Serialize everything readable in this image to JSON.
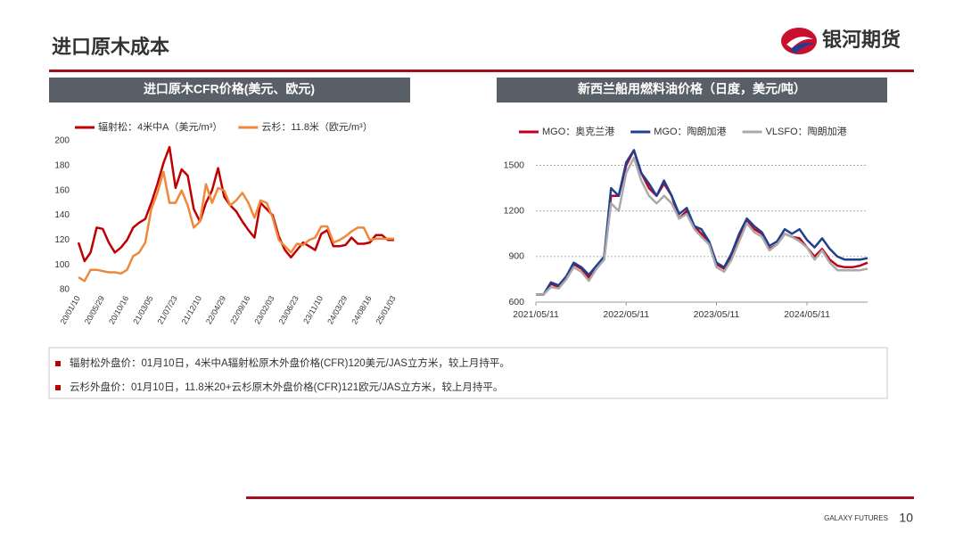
{
  "header": {
    "title": "进口原木成本",
    "logo": "银河期货"
  },
  "chart_data": [
    {
      "type": "line",
      "title": "进口原木CFR价格(美元、欧元)",
      "categories": [
        "20/01/10",
        null,
        null,
        null,
        "20/05/29",
        null,
        null,
        null,
        "20/10/16",
        null,
        null,
        null,
        "21/03/05",
        null,
        null,
        null,
        "21/07/23",
        null,
        null,
        null,
        "21/12/10",
        null,
        null,
        null,
        "22/04/29",
        null,
        null,
        null,
        "22/09/16",
        null,
        null,
        null,
        "23/02/03",
        null,
        null,
        null,
        "23/06/23",
        null,
        null,
        null,
        "23/11/10",
        null,
        null,
        null,
        "24/03/29",
        null,
        null,
        null,
        "24/08/16",
        null,
        null,
        null,
        "25/01/03"
      ],
      "series": [
        {
          "name": "辐射松：4米中A（美元/m³）",
          "color": "#c00000",
          "values": [
            118,
            103,
            110,
            130,
            129,
            118,
            110,
            114,
            120,
            130,
            134,
            137,
            150,
            165,
            182,
            195,
            162,
            177,
            172,
            145,
            135,
            150,
            160,
            178,
            155,
            148,
            143,
            135,
            128,
            122,
            150,
            145,
            140,
            123,
            112,
            106,
            112,
            118,
            115,
            112,
            125,
            128,
            115,
            115,
            116,
            122,
            117,
            117,
            118,
            124,
            124,
            120,
            120
          ]
        },
        {
          "name": "云杉：11.8米（欧元/m³）",
          "color": "#f0883a",
          "values": [
            90,
            87,
            96,
            96,
            95,
            94,
            94,
            93,
            96,
            107,
            110,
            118,
            145,
            158,
            175,
            150,
            150,
            160,
            148,
            130,
            135,
            165,
            150,
            162,
            160,
            148,
            152,
            158,
            150,
            138,
            152,
            150,
            138,
            120,
            115,
            110,
            117,
            116,
            120,
            122,
            131,
            131,
            118,
            120,
            123,
            127,
            130,
            130,
            120,
            121,
            121,
            121,
            121
          ]
        }
      ],
      "ylim": [
        80,
        200
      ],
      "yticks": [
        80,
        100,
        120,
        140,
        160,
        180,
        200
      ],
      "grid": false
    },
    {
      "type": "line",
      "title": "新西兰船用燃料油价格（日度，美元/吨）",
      "x": [
        "2021/05/11",
        "2021/06/11",
        "2021/07/11",
        "2021/08/11",
        "2021/09/11",
        "2021/10/11",
        "2021/11/11",
        "2021/12/11",
        "2022/01/11",
        "2022/02/11",
        "2022/03/11",
        "2022/04/11",
        "2022/05/11",
        "2022/06/11",
        "2022/07/11",
        "2022/08/11",
        "2022/09/11",
        "2022/10/11",
        "2022/11/11",
        "2022/12/11",
        "2023/01/11",
        "2023/02/11",
        "2023/03/11",
        "2023/04/11",
        "2023/05/11",
        "2023/06/11",
        "2023/07/11",
        "2023/08/11",
        "2023/09/11",
        "2023/10/11",
        "2023/11/11",
        "2023/12/11",
        "2024/01/11",
        "2024/02/11",
        "2024/03/11",
        "2024/04/11",
        "2024/05/11",
        "2024/06/11",
        "2024/07/11",
        "2024/08/11",
        "2024/09/11",
        "2024/10/11",
        "2024/11/11",
        "2024/12/11",
        "2025/01/11"
      ],
      "series": [
        {
          "name": "MGO：奥克兰港",
          "color": "#c0001f",
          "values": [
            650,
            650,
            720,
            700,
            760,
            850,
            820,
            760,
            830,
            900,
            1300,
            1300,
            1500,
            1600,
            1450,
            1350,
            1300,
            1380,
            1300,
            1150,
            1200,
            1100,
            1050,
            1000,
            850,
            820,
            900,
            1030,
            1130,
            1080,
            1050,
            950,
            980,
            1050,
            1030,
            1020,
            960,
            900,
            950,
            880,
            840,
            830,
            830,
            840,
            860
          ]
        },
        {
          "name": "MGO：陶朗加港",
          "color": "#1f3f8f",
          "values": [
            650,
            650,
            730,
            710,
            770,
            860,
            830,
            780,
            840,
            900,
            1350,
            1300,
            1520,
            1600,
            1450,
            1380,
            1300,
            1400,
            1300,
            1180,
            1220,
            1100,
            1080,
            1000,
            860,
            830,
            920,
            1050,
            1150,
            1100,
            1060,
            970,
            1000,
            1080,
            1050,
            1080,
            1010,
            960,
            1020,
            950,
            900,
            880,
            880,
            880,
            890
          ]
        },
        {
          "name": "VLSFO：陶朗加港",
          "color": "#aaaaaa",
          "values": [
            650,
            650,
            700,
            690,
            750,
            830,
            800,
            740,
            820,
            880,
            1250,
            1200,
            1450,
            1550,
            1400,
            1300,
            1250,
            1300,
            1250,
            1150,
            1180,
            1080,
            1030,
            980,
            830,
            800,
            880,
            1000,
            1120,
            1060,
            1030,
            940,
            980,
            1050,
            1030,
            1000,
            960,
            880,
            940,
            860,
            810,
            810,
            810,
            810,
            820
          ]
        }
      ],
      "xlim": [
        "2021/05/11",
        "2025/01/11"
      ],
      "xticks": [
        "2021/05/11",
        "2022/05/11",
        "2023/05/11",
        "2024/05/11"
      ],
      "ylim": [
        600,
        1650
      ],
      "yticks": [
        600,
        900,
        1200,
        1500
      ],
      "grid": true
    }
  ],
  "notes": [
    "辐射松外盘价：01月10日，4米中A辐射松原木外盘价格(CFR)120美元/JAS立方米，较上月持平。",
    "云杉外盘价：01月10日，11.8米20+云杉原木外盘价格(CFR)121欧元/JAS立方米，较上月持平。"
  ],
  "footer": {
    "brand": "GALAXY FUTURES",
    "page": "10"
  }
}
